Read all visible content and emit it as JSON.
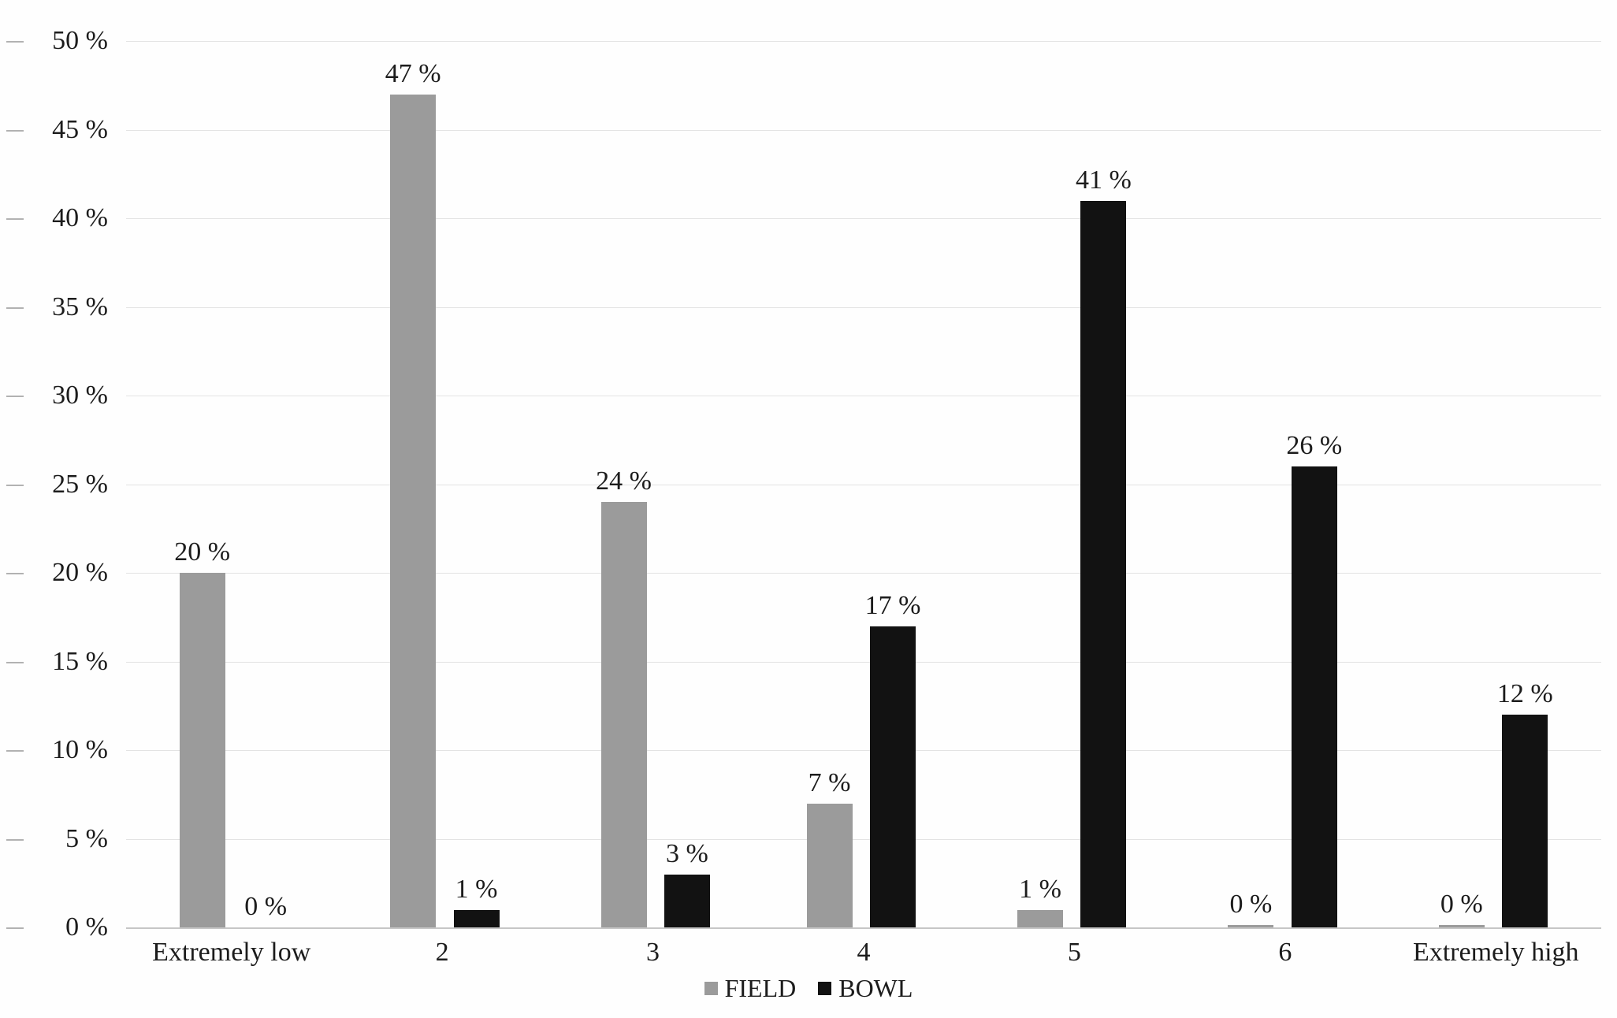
{
  "chart_data": {
    "type": "bar",
    "title": "",
    "categories": [
      "Extremely low",
      "2",
      "3",
      "4",
      "5",
      "6",
      "Extremely high"
    ],
    "series": [
      {
        "name": "FIELD",
        "color": "#9b9b9b",
        "values": [
          20,
          47,
          24,
          7,
          1,
          0,
          0
        ]
      },
      {
        "name": "BOWL",
        "color": "#121212",
        "values": [
          0,
          1,
          3,
          17,
          41,
          26,
          12
        ]
      }
    ],
    "ylim": [
      0,
      50
    ],
    "ytick_step": 5,
    "ytick_labels": [
      "0 %",
      "5 %",
      "10 %",
      "15 %",
      "20 %",
      "25 %",
      "30 %",
      "35 %",
      "40 %",
      "45 %",
      "50 %"
    ],
    "value_label_suffix": " %",
    "grid": true,
    "legend_position": "bottom-center",
    "xlabel": "",
    "ylabel": ""
  },
  "colors": {
    "background": "#fefefe",
    "gridline": "#e3e3e3",
    "axis_line": "#c6c6c6",
    "tick": "#b2b2b2",
    "text": "#1c1c1c",
    "field_bar": "#9b9b9b",
    "bowl_bar": "#121212"
  }
}
